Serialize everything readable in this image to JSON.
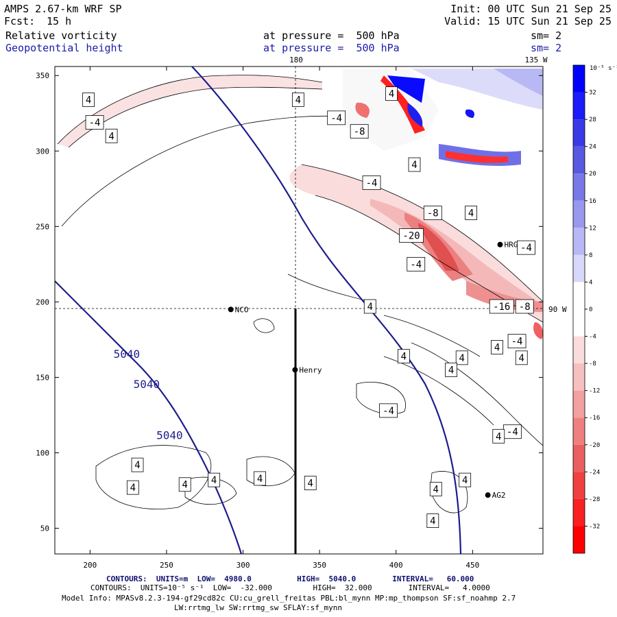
{
  "header": {
    "model": "AMPS 2.67-km WRF SP",
    "forecast_label": "Fcst:",
    "forecast_value": "15 h",
    "init": "Init: 00 UTC Sun 21 Sep 25",
    "valid": "Valid: 15 UTC Sun 21 Sep 25",
    "field1": "Relative vorticity",
    "field1_pressure": "at pressure =  500 hPa",
    "field1_sm": "sm= 2",
    "field2": "Geopotential height",
    "field2_pressure": "at pressure =  500 hPa",
    "field2_sm": "sm= 2"
  },
  "map": {
    "top_labels": [
      "180",
      "135 W"
    ],
    "right_label": "90 W",
    "x_ticks": [
      200,
      250,
      300,
      350,
      400,
      450
    ],
    "y_ticks": [
      50,
      100,
      150,
      200,
      250,
      300,
      350
    ],
    "stations": [
      {
        "name": "NCO",
        "x": 292,
        "y": 195
      },
      {
        "name": "Henry",
        "x": 334,
        "y": 155
      },
      {
        "name": "AG2",
        "x": 460,
        "y": 72
      },
      {
        "name": "HRG",
        "x": 468,
        "y": 238
      }
    ],
    "height_labels": [
      {
        "text": "5040",
        "x": 224,
        "y": 163
      },
      {
        "text": "5040",
        "x": 237,
        "y": 143
      },
      {
        "text": "5040",
        "x": 252,
        "y": 109
      }
    ],
    "vort_labels": [
      {
        "text": "4",
        "x": 199,
        "y": 334
      },
      {
        "text": "-4",
        "x": 203,
        "y": 319
      },
      {
        "text": "4",
        "x": 214,
        "y": 310
      },
      {
        "text": "4",
        "x": 336,
        "y": 334
      },
      {
        "text": "-4",
        "x": 361,
        "y": 322
      },
      {
        "text": "-8",
        "x": 376,
        "y": 313
      },
      {
        "text": "4",
        "x": 397,
        "y": 338
      },
      {
        "text": "4",
        "x": 412,
        "y": 291
      },
      {
        "text": "-4",
        "x": 384,
        "y": 279
      },
      {
        "text": "-8",
        "x": 424,
        "y": 259
      },
      {
        "text": "4",
        "x": 449,
        "y": 259
      },
      {
        "text": "-20",
        "x": 410,
        "y": 244
      },
      {
        "text": "-4",
        "x": 413,
        "y": 225
      },
      {
        "text": "-4",
        "x": 485,
        "y": 236
      },
      {
        "text": "4",
        "x": 383,
        "y": 197
      },
      {
        "text": "-16",
        "x": 469,
        "y": 197
      },
      {
        "text": "-8",
        "x": 484,
        "y": 197
      },
      {
        "text": "-4",
        "x": 479,
        "y": 174
      },
      {
        "text": "4",
        "x": 466,
        "y": 170
      },
      {
        "text": "4",
        "x": 482,
        "y": 163
      },
      {
        "text": "4",
        "x": 405,
        "y": 164
      },
      {
        "text": "4",
        "x": 443,
        "y": 163
      },
      {
        "text": "4",
        "x": 436,
        "y": 155
      },
      {
        "text": "-4",
        "x": 395,
        "y": 128
      },
      {
        "text": "-4",
        "x": 476,
        "y": 114
      },
      {
        "text": "4",
        "x": 467,
        "y": 111
      },
      {
        "text": "4",
        "x": 231,
        "y": 92
      },
      {
        "text": "4",
        "x": 228,
        "y": 77
      },
      {
        "text": "4",
        "x": 262,
        "y": 79
      },
      {
        "text": "4",
        "x": 281,
        "y": 82
      },
      {
        "text": "4",
        "x": 311,
        "y": 83
      },
      {
        "text": "4",
        "x": 344,
        "y": 80
      },
      {
        "text": "4",
        "x": 445,
        "y": 82
      },
      {
        "text": "4",
        "x": 426,
        "y": 76
      },
      {
        "text": "4",
        "x": 424,
        "y": 55
      }
    ]
  },
  "colorbar": {
    "unit": "10⁻⁵ s⁻¹",
    "ticks": [
      "32",
      "28",
      "24",
      "20",
      "16",
      "12",
      "8",
      "4",
      "0",
      "-4",
      "-8",
      "-12",
      "-16",
      "-20",
      "-24",
      "-28",
      "-32"
    ],
    "colors": [
      "#0000ff",
      "#1c1cf8",
      "#3a3ae6",
      "#5858e0",
      "#7878e6",
      "#9898ee",
      "#b8b8f4",
      "#d8d8fa",
      "#ffffff",
      "#ffffff",
      "#fadcdc",
      "#f6c0c0",
      "#f2a0a0",
      "#ee8080",
      "#ea6060",
      "#f04040",
      "#f82020",
      "#ff0000"
    ]
  },
  "footer": {
    "line1": "CONTOURS:  UNITS=m  LOW=  4980.0          HIGH=  5040.0        INTERVAL=   60.000",
    "line2": "CONTOURS:  UNITS=10⁻⁵ s⁻¹  LOW=  -32.000         HIGH=  32.000        INTERVAL=   4.0000",
    "line3": "Model Info: MPASv8.2.3-194-gf29cd82c CU:cu_grell_freitas PBL:bl_mynn MP:mp_thompson SF:sf_noahmp 2.7",
    "line4": "LW:rrtmg_lw SW:rrtmg_sw SFLAY:sf_mynn"
  }
}
